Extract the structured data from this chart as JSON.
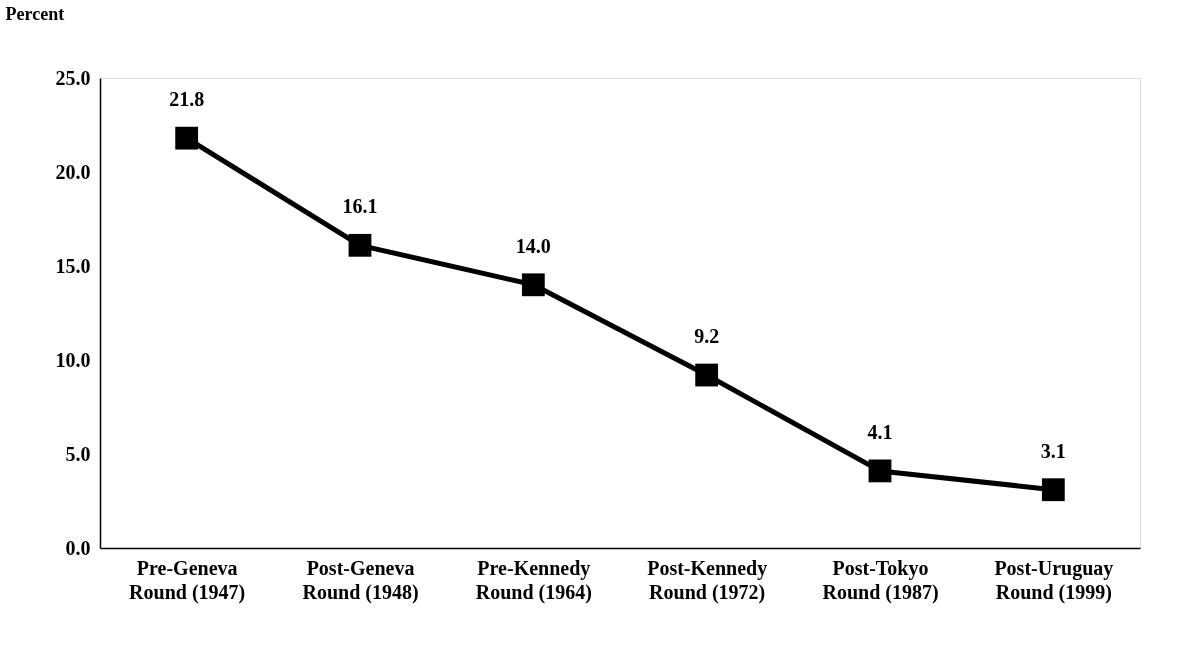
{
  "chart_data": {
    "type": "line",
    "ylabel": "Percent",
    "categories": [
      "Pre-Geneva\nRound (1947)",
      "Post-Geneva\nRound (1948)",
      "Pre-Kennedy\nRound (1964)",
      "Post-Kennedy\nRound (1972)",
      "Post-Tokyo\nRound (1987)",
      "Post-Uruguay\nRound (1999)"
    ],
    "series": [
      {
        "color": "#000000",
        "values": [
          21.8,
          16.1,
          14.0,
          9.2,
          4.1,
          3.1
        ]
      }
    ],
    "ylim": [
      0,
      25
    ],
    "yticks": [
      {
        "value": 0,
        "label": "0.0"
      },
      {
        "value": 5,
        "label": "5.0"
      },
      {
        "value": 10,
        "label": "10.0"
      },
      {
        "value": 15,
        "label": "15.0"
      },
      {
        "value": 20,
        "label": "20.0"
      },
      {
        "value": 25,
        "label": "25.0"
      }
    ],
    "value_labels": [
      "21.8",
      "16.1",
      "14.0",
      "9.2",
      "4.1",
      "3.1"
    ],
    "marker": "square",
    "line_style": "solid",
    "grid": false
  }
}
